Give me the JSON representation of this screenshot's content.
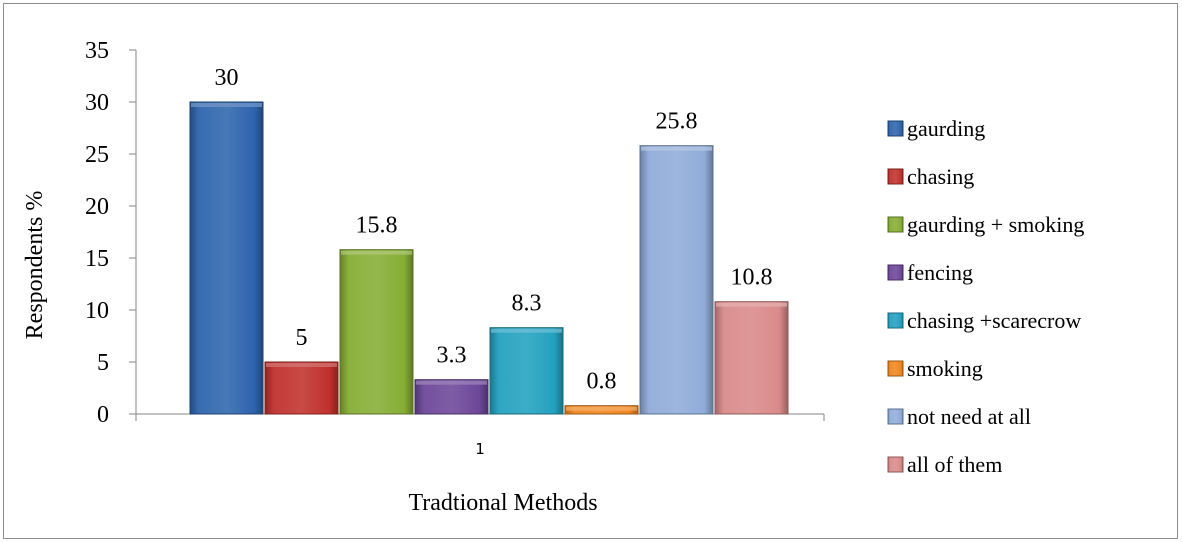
{
  "chart_data": {
    "type": "bar",
    "categories": [
      "1"
    ],
    "series": [
      {
        "name": "gaurding",
        "values": [
          30
        ],
        "color": "#2e64ad"
      },
      {
        "name": "chasing",
        "values": [
          5
        ],
        "color": "#c0312d"
      },
      {
        "name": "gaurding + smoking",
        "values": [
          15.8
        ],
        "color": "#86ad35"
      },
      {
        "name": "fencing",
        "values": [
          3.3
        ],
        "color": "#6d4799"
      },
      {
        "name": "chasing +scarecrow",
        "values": [
          8.3
        ],
        "color": "#23a1c0"
      },
      {
        "name": "smoking",
        "values": [
          0.8
        ],
        "color": "#f0871f"
      },
      {
        "name": "not need at all",
        "values": [
          25.8
        ],
        "color": "#90acd9"
      },
      {
        "name": "all of them",
        "values": [
          10.8
        ],
        "color": "#d98a8a"
      }
    ],
    "data_labels": [
      "30",
      "5",
      "15.8",
      "3.3",
      "8.3",
      "0.8",
      "25.8",
      "10.8"
    ],
    "xlabel": "Tradtional Methods",
    "ylabel": "Respondents %",
    "ylim": [
      0,
      35
    ],
    "yticks": [
      "0",
      "5",
      "10",
      "15",
      "20",
      "25",
      "30",
      "35"
    ],
    "grid": false,
    "legend_position": "right"
  }
}
